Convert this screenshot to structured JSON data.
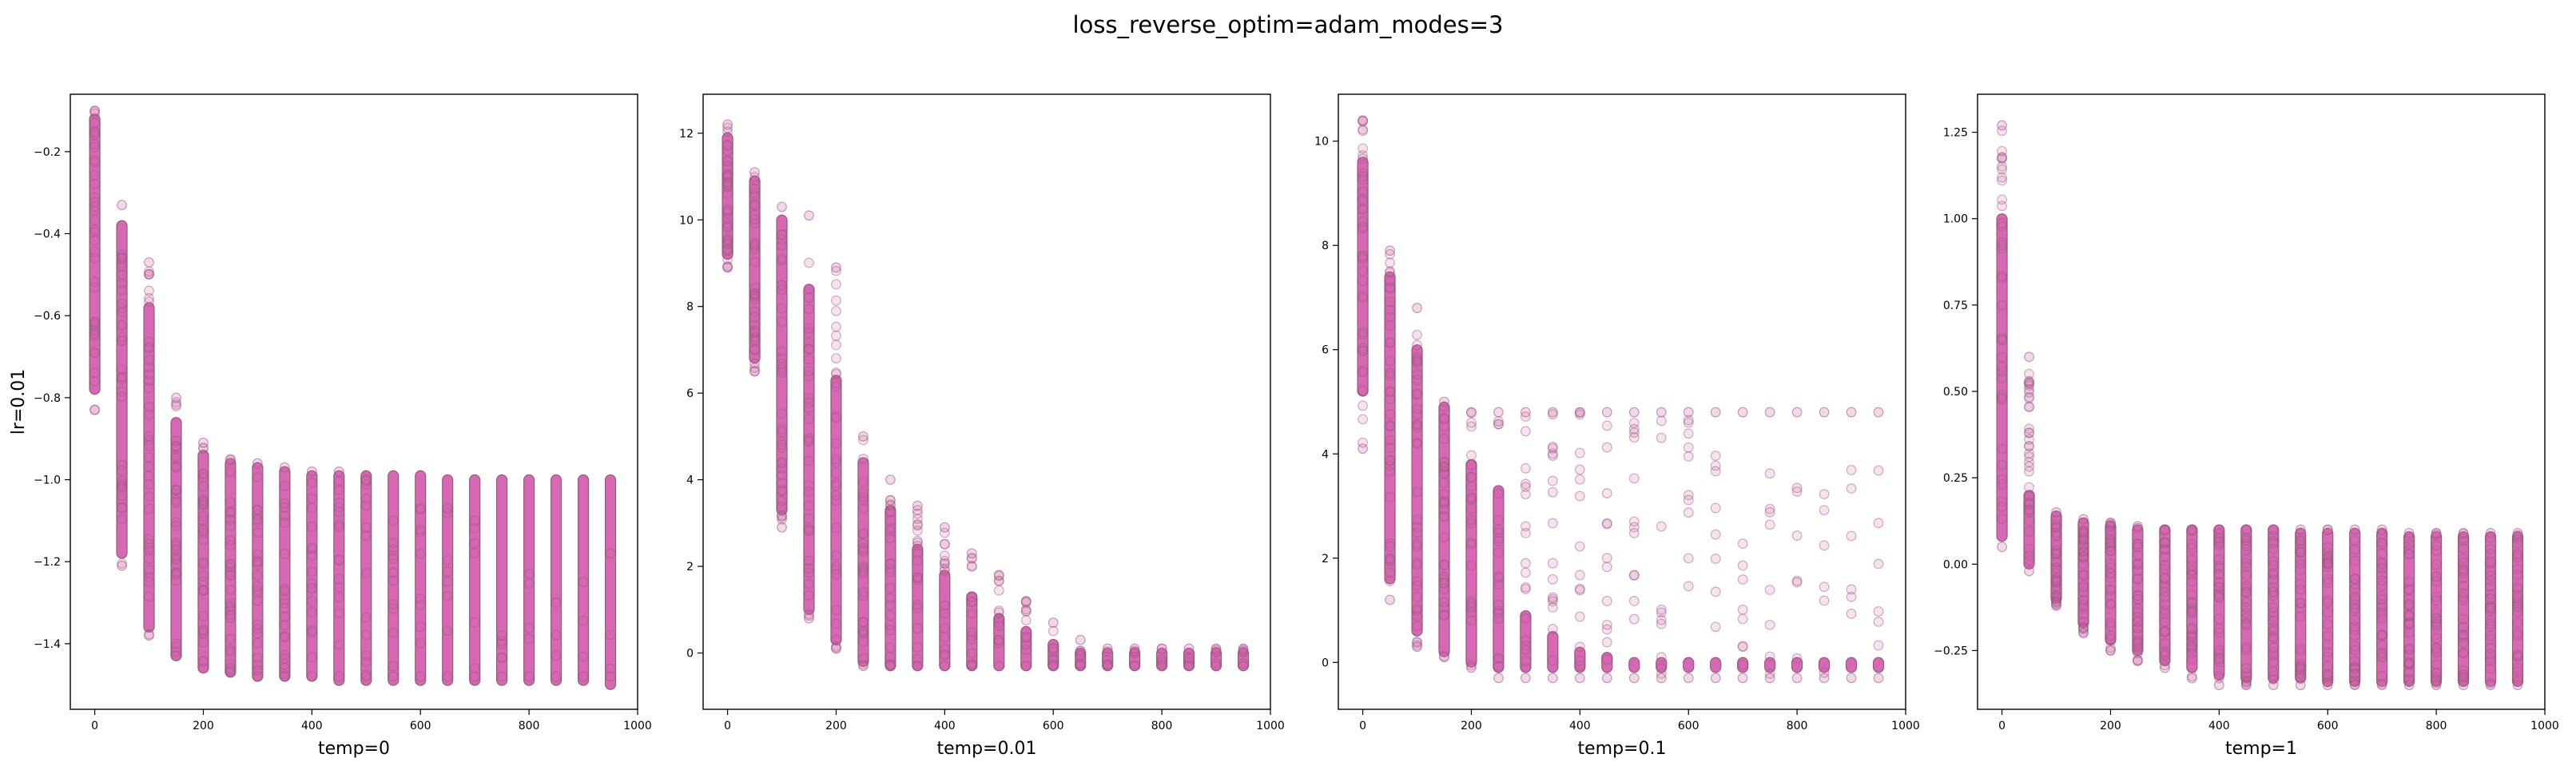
{
  "figure": {
    "title": "loss_reverse_optim=adam_modes=3",
    "row_label": "lr=0.01",
    "colors": {
      "face": "#d65fb2",
      "edge": "#8f6070"
    }
  },
  "chart_data": [
    {
      "type": "scatter",
      "xlabel": "temp=0",
      "ylabel": "lr=0.01",
      "xlim": [
        -45,
        1000
      ],
      "ylim": [
        -1.56,
        -0.06
      ],
      "xticks": [
        0,
        200,
        400,
        600,
        800,
        1000
      ],
      "yticks": [
        -1.4,
        -1.2,
        -1.0,
        -0.8,
        -0.6,
        -0.4,
        -0.2
      ],
      "grid": false,
      "x_steps": [
        0,
        50,
        100,
        150,
        200,
        250,
        300,
        350,
        400,
        450,
        500,
        550,
        600,
        650,
        700,
        750,
        800,
        850,
        900,
        950
      ],
      "dense_range": [
        [
          -0.78,
          -0.12
        ],
        [
          -1.18,
          -0.38
        ],
        [
          -1.36,
          -0.58
        ],
        [
          -1.43,
          -0.86
        ],
        [
          -1.46,
          -0.94
        ],
        [
          -1.47,
          -0.96
        ],
        [
          -1.48,
          -0.97
        ],
        [
          -1.48,
          -0.98
        ],
        [
          -1.48,
          -0.99
        ],
        [
          -1.49,
          -0.99
        ],
        [
          -1.49,
          -0.99
        ],
        [
          -1.49,
          -0.99
        ],
        [
          -1.49,
          -0.99
        ],
        [
          -1.49,
          -1.0
        ],
        [
          -1.49,
          -1.0
        ],
        [
          -1.49,
          -1.0
        ],
        [
          -1.49,
          -1.0
        ],
        [
          -1.49,
          -1.0
        ],
        [
          -1.49,
          -1.0
        ],
        [
          -1.5,
          -1.0
        ]
      ],
      "outliers": [
        [
          -0.83,
          -0.1
        ],
        [
          -1.21,
          -0.33
        ],
        [
          -1.38,
          -0.47
        ],
        [
          -1.43,
          -0.8
        ],
        [
          -1.46,
          -0.91
        ],
        [
          -1.47,
          -0.95
        ],
        [
          -1.48,
          -0.96
        ],
        [
          -1.48,
          -0.97
        ],
        [
          -1.48,
          -0.98
        ],
        [
          -1.48,
          -0.98
        ],
        [
          -1.48,
          -1.0
        ],
        [
          -1.48,
          -1.1
        ],
        [
          -1.48,
          -1.07
        ],
        [
          -1.48,
          -1.07
        ],
        [
          -1.48,
          -1.1
        ],
        [
          -1.48,
          -1.38
        ],
        [
          -1.48,
          -1.23
        ],
        [
          -1.48,
          -1.3
        ],
        [
          -1.48,
          -1.25
        ],
        [
          -1.48,
          -1.18
        ]
      ],
      "scatter_density": [
        0.9,
        0.9,
        0.9,
        0.85,
        0.8,
        0.7,
        0.6,
        0.5,
        0.4,
        0.35,
        0.3,
        0.25,
        0.2,
        0.15,
        0.12,
        0.1,
        0.08,
        0.06,
        0.05,
        0.05
      ]
    },
    {
      "type": "scatter",
      "xlabel": "temp=0.01",
      "ylabel": "",
      "xlim": [
        -45,
        1000
      ],
      "ylim": [
        -1.3,
        12.9
      ],
      "xticks": [
        0,
        200,
        400,
        600,
        800,
        1000
      ],
      "yticks": [
        0,
        2,
        4,
        6,
        8,
        10,
        12
      ],
      "grid": false,
      "x_steps": [
        0,
        50,
        100,
        150,
        200,
        250,
        300,
        350,
        400,
        450,
        500,
        550,
        600,
        650,
        700,
        750,
        800,
        850,
        900,
        950
      ],
      "dense_range": [
        [
          9.2,
          11.9
        ],
        [
          6.8,
          10.9
        ],
        [
          3.3,
          10.0
        ],
        [
          1.0,
          8.4
        ],
        [
          0.3,
          6.3
        ],
        [
          -0.2,
          4.4
        ],
        [
          -0.3,
          3.3
        ],
        [
          -0.3,
          2.4
        ],
        [
          -0.3,
          1.8
        ],
        [
          -0.3,
          1.3
        ],
        [
          -0.3,
          0.8
        ],
        [
          -0.3,
          0.5
        ],
        [
          -0.3,
          0.2
        ],
        [
          -0.3,
          0.0
        ],
        [
          -0.3,
          0.0
        ],
        [
          -0.3,
          0.0
        ],
        [
          -0.3,
          0.0
        ],
        [
          -0.3,
          0.0
        ],
        [
          -0.3,
          0.0
        ],
        [
          -0.3,
          0.0
        ]
      ],
      "outliers": [
        [
          8.9,
          12.2
        ],
        [
          6.5,
          11.1
        ],
        [
          2.9,
          10.3
        ],
        [
          0.8,
          10.1
        ],
        [
          0.1,
          8.9
        ],
        [
          -0.3,
          5.0
        ],
        [
          -0.3,
          4.0
        ],
        [
          -0.3,
          3.4
        ],
        [
          -0.3,
          2.9
        ],
        [
          -0.3,
          2.3
        ],
        [
          -0.3,
          1.8
        ],
        [
          -0.3,
          1.2
        ],
        [
          -0.3,
          0.7
        ],
        [
          -0.3,
          0.3
        ],
        [
          -0.3,
          0.1
        ],
        [
          -0.3,
          0.1
        ],
        [
          -0.3,
          0.1
        ],
        [
          -0.3,
          0.1
        ],
        [
          -0.3,
          0.1
        ],
        [
          -0.3,
          0.1
        ]
      ],
      "scatter_density": [
        0.9,
        0.9,
        0.9,
        0.85,
        0.8,
        0.7,
        0.6,
        0.5,
        0.4,
        0.35,
        0.3,
        0.25,
        0.2,
        0.15,
        0.1,
        0.1,
        0.1,
        0.1,
        0.1,
        0.1
      ]
    },
    {
      "type": "scatter",
      "xlabel": "temp=0.1",
      "ylabel": "",
      "xlim": [
        -45,
        1000
      ],
      "ylim": [
        -0.9,
        10.9
      ],
      "xticks": [
        0,
        200,
        400,
        600,
        800,
        1000
      ],
      "yticks": [
        0,
        2,
        4,
        6,
        8,
        10
      ],
      "grid": false,
      "x_steps": [
        0,
        50,
        100,
        150,
        200,
        250,
        300,
        350,
        400,
        450,
        500,
        550,
        600,
        650,
        700,
        750,
        800,
        850,
        900,
        950
      ],
      "dense_range": [
        [
          5.2,
          9.6
        ],
        [
          1.6,
          7.4
        ],
        [
          0.6,
          6.0
        ],
        [
          0.2,
          4.9
        ],
        [
          0.0,
          3.8
        ],
        [
          -0.1,
          3.3
        ],
        [
          -0.1,
          0.9
        ],
        [
          -0.1,
          0.5
        ],
        [
          -0.1,
          0.2
        ],
        [
          -0.1,
          0.1
        ],
        [
          -0.1,
          0.0
        ],
        [
          -0.1,
          0.0
        ],
        [
          -0.1,
          0.0
        ],
        [
          -0.1,
          0.0
        ],
        [
          -0.1,
          0.0
        ],
        [
          -0.1,
          0.0
        ],
        [
          -0.1,
          0.0
        ],
        [
          -0.1,
          0.0
        ],
        [
          -0.1,
          0.0
        ],
        [
          -0.1,
          0.0
        ]
      ],
      "outliers": [
        [
          4.1,
          10.4
        ],
        [
          1.2,
          7.9
        ],
        [
          0.3,
          6.8
        ],
        [
          0.1,
          5.0
        ],
        [
          -0.1,
          4.8
        ],
        [
          -0.3,
          4.8
        ],
        [
          -0.3,
          4.8
        ],
        [
          -0.3,
          4.8
        ],
        [
          -0.3,
          4.8
        ],
        [
          -0.3,
          4.8
        ],
        [
          -0.3,
          4.8
        ],
        [
          -0.3,
          4.8
        ],
        [
          -0.3,
          4.8
        ],
        [
          -0.3,
          4.8
        ],
        [
          -0.3,
          4.8
        ],
        [
          -0.3,
          4.8
        ],
        [
          -0.3,
          4.8
        ],
        [
          -0.3,
          4.8
        ],
        [
          -0.3,
          4.8
        ],
        [
          -0.3,
          4.8
        ]
      ],
      "scatter_density": [
        0.9,
        0.9,
        0.9,
        0.85,
        0.6,
        0.5,
        0.45,
        0.4,
        0.35,
        0.3,
        0.3,
        0.25,
        0.25,
        0.2,
        0.2,
        0.2,
        0.15,
        0.15,
        0.15,
        0.15
      ]
    },
    {
      "type": "scatter",
      "xlabel": "temp=1",
      "ylabel": "",
      "xlim": [
        -45,
        1000
      ],
      "ylim": [
        -0.42,
        1.36
      ],
      "xticks": [
        0,
        200,
        400,
        600,
        800,
        1000
      ],
      "yticks": [
        -0.25,
        0.0,
        0.25,
        0.5,
        0.75,
        1.0,
        1.25
      ],
      "grid": false,
      "x_steps": [
        0,
        50,
        100,
        150,
        200,
        250,
        300,
        350,
        400,
        450,
        500,
        550,
        600,
        650,
        700,
        750,
        800,
        850,
        900,
        950
      ],
      "dense_range": [
        [
          0.08,
          1.0
        ],
        [
          0.0,
          0.2
        ],
        [
          -0.1,
          0.14
        ],
        [
          -0.17,
          0.12
        ],
        [
          -0.22,
          0.11
        ],
        [
          -0.25,
          0.1
        ],
        [
          -0.28,
          0.1
        ],
        [
          -0.3,
          0.1
        ],
        [
          -0.32,
          0.1
        ],
        [
          -0.33,
          0.1
        ],
        [
          -0.33,
          0.1
        ],
        [
          -0.33,
          0.09
        ],
        [
          -0.34,
          0.09
        ],
        [
          -0.34,
          0.09
        ],
        [
          -0.34,
          0.09
        ],
        [
          -0.34,
          0.08
        ],
        [
          -0.34,
          0.08
        ],
        [
          -0.34,
          0.08
        ],
        [
          -0.34,
          0.08
        ],
        [
          -0.34,
          0.08
        ]
      ],
      "outliers": [
        [
          0.05,
          1.27
        ],
        [
          -0.02,
          0.6
        ],
        [
          -0.12,
          0.15
        ],
        [
          -0.2,
          0.13
        ],
        [
          -0.25,
          0.12
        ],
        [
          -0.28,
          0.11
        ],
        [
          -0.3,
          0.1
        ],
        [
          -0.33,
          0.1
        ],
        [
          -0.35,
          0.1
        ],
        [
          -0.35,
          0.1
        ],
        [
          -0.35,
          0.1
        ],
        [
          -0.35,
          0.1
        ],
        [
          -0.35,
          0.1
        ],
        [
          -0.35,
          0.1
        ],
        [
          -0.35,
          0.1
        ],
        [
          -0.35,
          0.09
        ],
        [
          -0.35,
          0.09
        ],
        [
          -0.35,
          0.09
        ],
        [
          -0.35,
          0.09
        ],
        [
          -0.35,
          0.09
        ]
      ],
      "scatter_density": [
        0.9,
        0.9,
        0.85,
        0.8,
        0.75,
        0.75,
        0.7,
        0.7,
        0.7,
        0.7,
        0.7,
        0.7,
        0.7,
        0.7,
        0.7,
        0.7,
        0.7,
        0.7,
        0.7,
        0.7
      ]
    }
  ]
}
